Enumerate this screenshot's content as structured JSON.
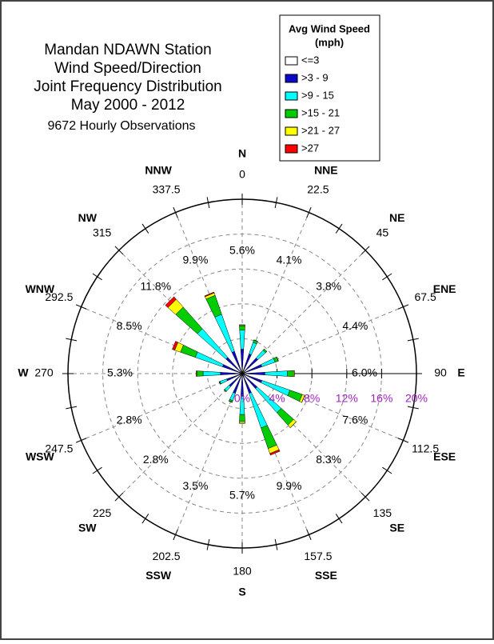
{
  "chart_data": {
    "type": "windrose",
    "title": [
      "Mandan NDAWN Station",
      "Wind Speed/Direction",
      "Joint Frequency Distribution",
      "May 2000 - 2012"
    ],
    "subtitle": "9672 Hourly Observations",
    "legend_title": [
      "Avg Wind Speed",
      "(mph)"
    ],
    "directions": [
      "N",
      "NNE",
      "NE",
      "ENE",
      "E",
      "ESE",
      "SE",
      "SSE",
      "S",
      "SSW",
      "SW",
      "WSW",
      "W",
      "WNW",
      "NW",
      "NNW"
    ],
    "angles": [
      0,
      22.5,
      45,
      67.5,
      90,
      112.5,
      135,
      157.5,
      180,
      202.5,
      225,
      247.5,
      270,
      292.5,
      315,
      337.5
    ],
    "direction_labels": [
      "5.6%",
      "4.1%",
      "3.8%",
      "4.4%",
      "6.0%",
      "7.6%",
      "8.3%",
      "9.9%",
      "5.7%",
      "3.5%",
      "2.8%",
      "2.8%",
      "5.3%",
      "8.5%",
      "11.8%",
      "9.9%"
    ],
    "series": [
      {
        "name": "<=3",
        "color": "#ffffff",
        "values": [
          0.2,
          0.2,
          0.2,
          0.2,
          0.2,
          0.2,
          0.2,
          0.2,
          0.2,
          0.2,
          0.2,
          0.2,
          0.2,
          0.2,
          0.2,
          0.2
        ]
      },
      {
        "name": ">3 - 9",
        "color": "#0a0ac8",
        "values": [
          2.6,
          2.2,
          2.2,
          2.2,
          2.4,
          2.2,
          2.1,
          2.2,
          2.4,
          2.2,
          1.8,
          1.7,
          2.3,
          2.2,
          2.3,
          2.5
        ]
      },
      {
        "name": ">9 - 15",
        "color": "#00ffff",
        "values": [
          2.2,
          1.4,
          1.2,
          1.6,
          2.6,
          3.4,
          3.7,
          4.2,
          2.1,
          0.9,
          0.7,
          0.8,
          2.0,
          3.3,
          4.4,
          4.5
        ]
      },
      {
        "name": ">15 - 21",
        "color": "#00cc00",
        "values": [
          0.5,
          0.3,
          0.2,
          0.4,
          0.7,
          1.5,
          1.9,
          2.5,
          0.8,
          0.2,
          0.1,
          0.1,
          0.7,
          1.8,
          3.3,
          2.3
        ]
      },
      {
        "name": ">21 - 27",
        "color": "#ffff00",
        "values": [
          0.1,
          0,
          0,
          0,
          0.1,
          0.3,
          0.4,
          0.6,
          0.2,
          0,
          0,
          0,
          0.1,
          0.7,
          1.2,
          0.3
        ]
      },
      {
        "name": ">27",
        "color": "#ff0000",
        "values": [
          0,
          0,
          0,
          0,
          0,
          0,
          0,
          0.2,
          0,
          0,
          0,
          0,
          0,
          0.3,
          0.4,
          0.1
        ]
      }
    ],
    "rlim": [
      0,
      20
    ],
    "rticks": [
      {
        "value": 0,
        "label": "0%"
      },
      {
        "value": 4,
        "label": "4%"
      },
      {
        "value": 8,
        "label": "8%"
      },
      {
        "value": 12,
        "label": "12%"
      },
      {
        "value": 16,
        "label": "16%"
      },
      {
        "value": 20,
        "label": "20%"
      }
    ],
    "rtick_color": "#a020c0"
  }
}
